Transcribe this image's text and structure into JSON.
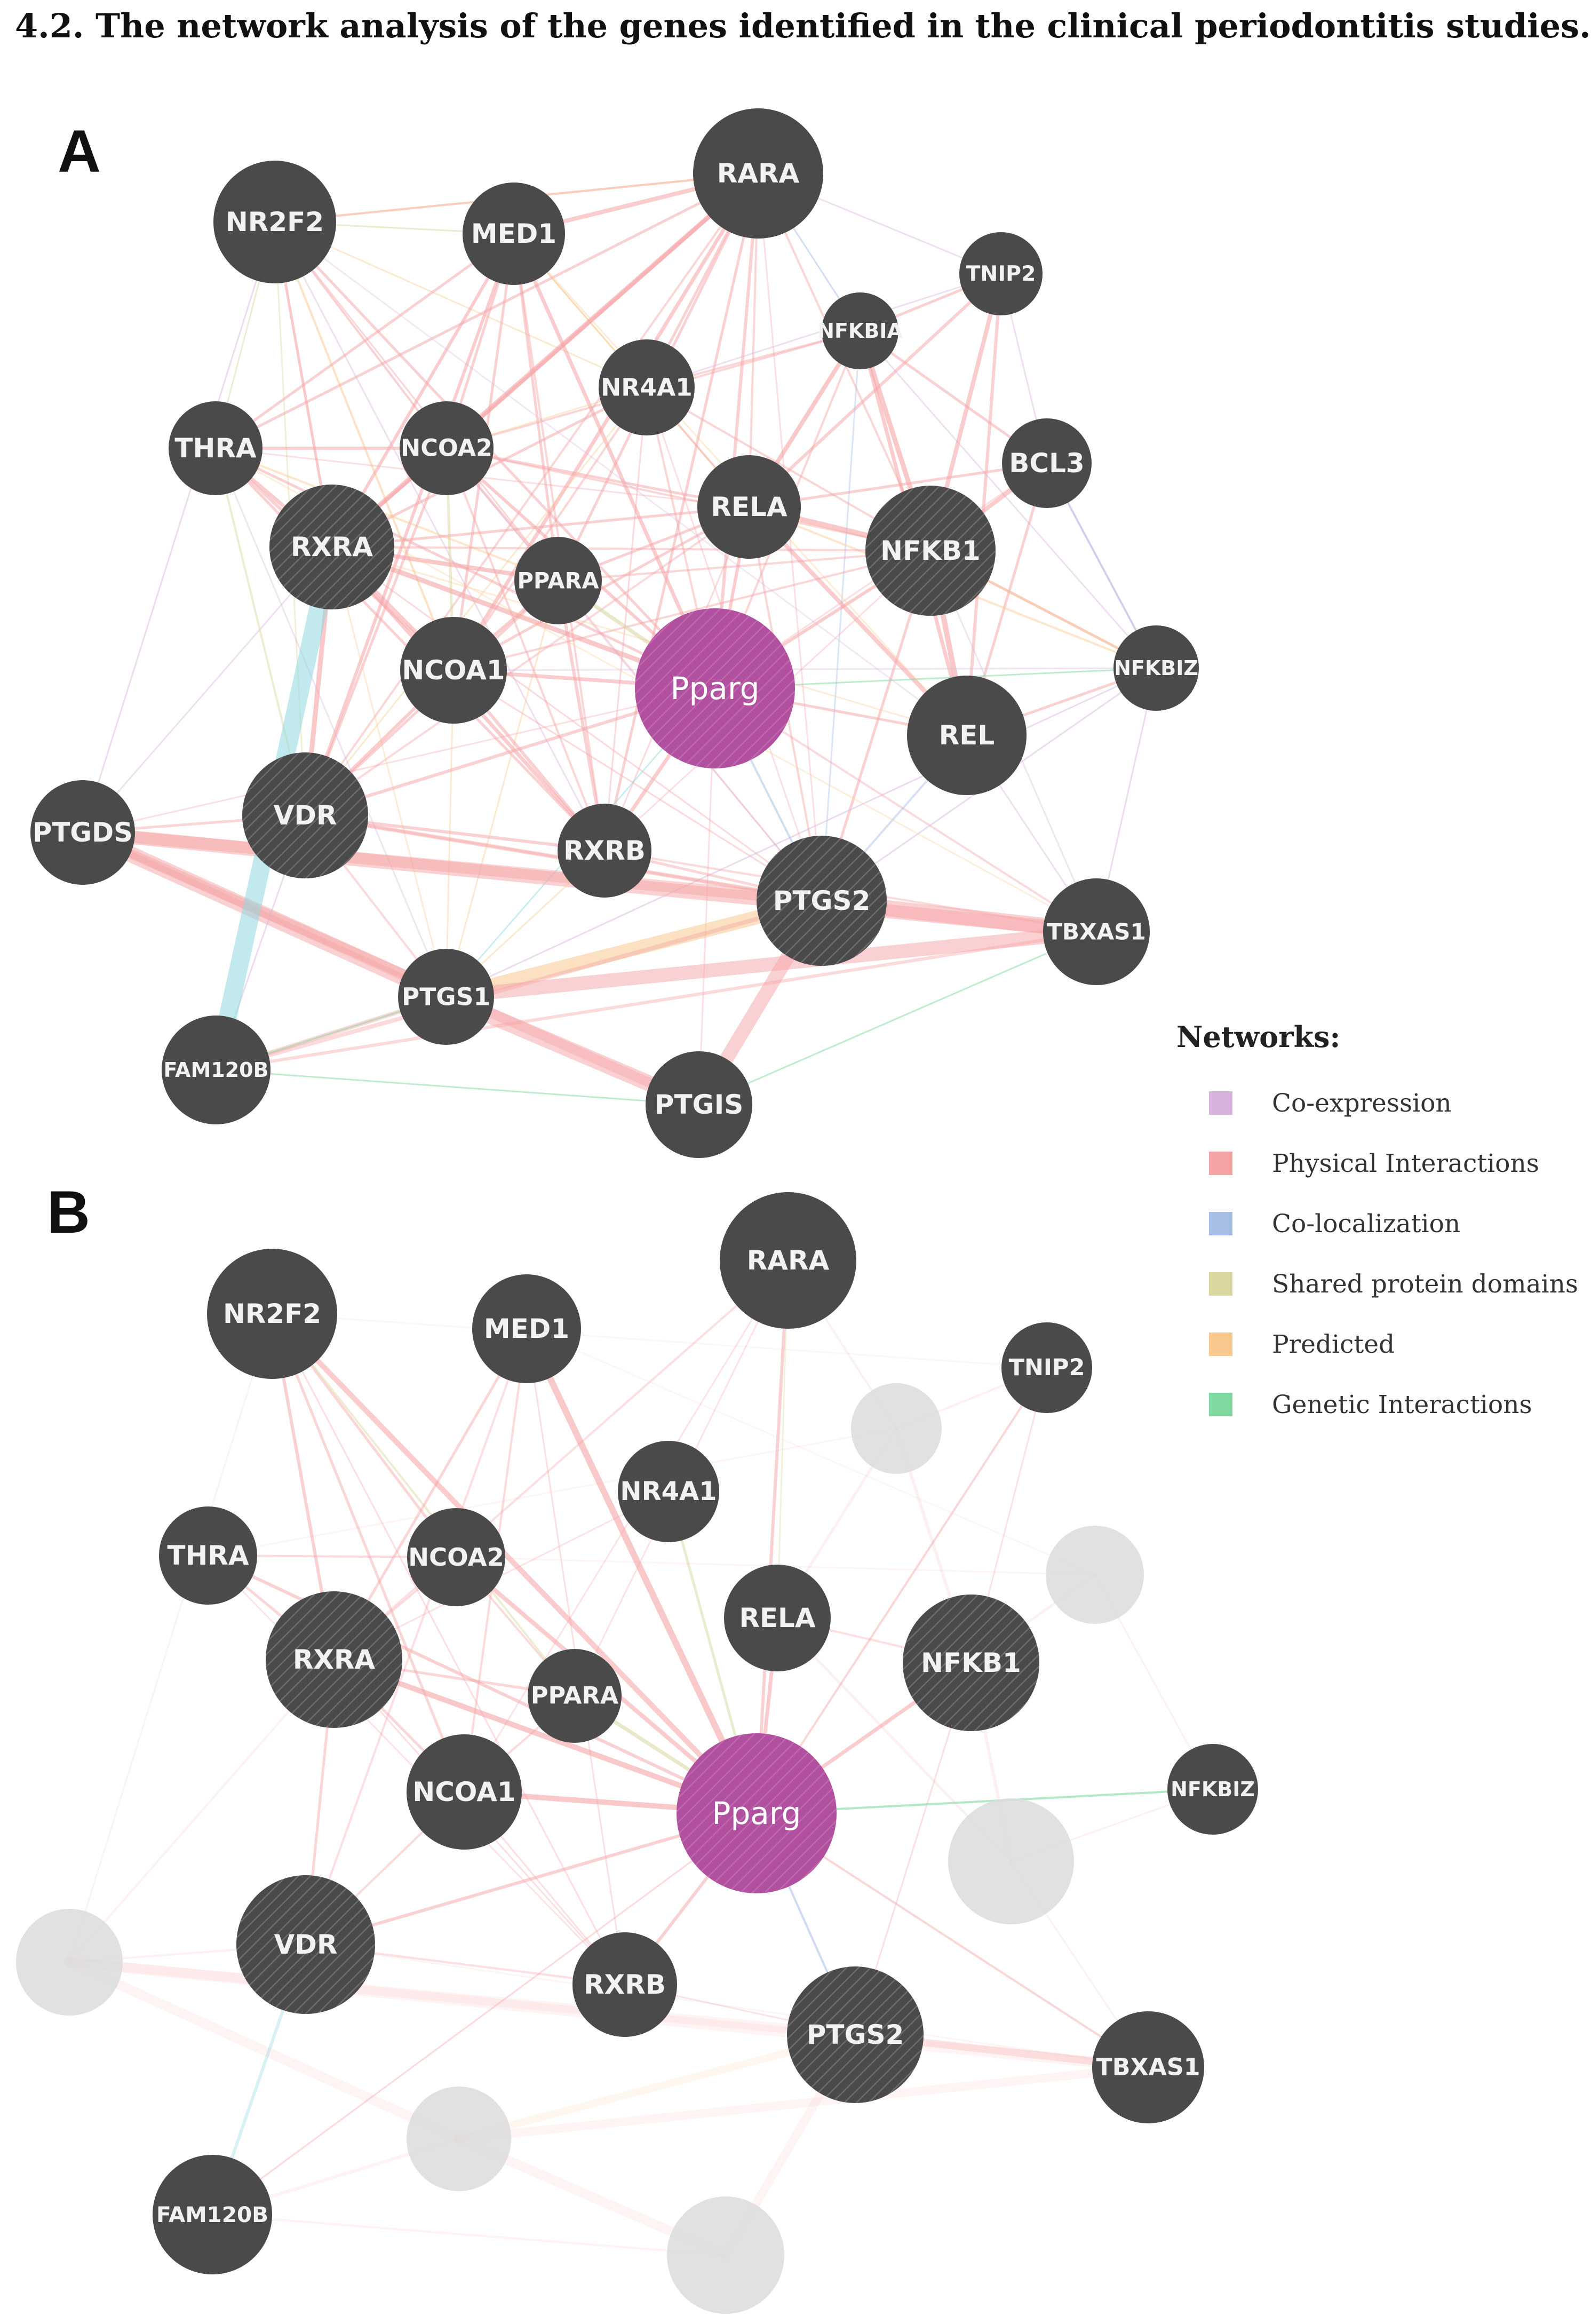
{
  "heading": "4.2. The network analysis of the genes identified in the clinical periodontitis studies.",
  "colors": {
    "node": "#4a4a4a",
    "focus_node": "#b0509f",
    "faded_node": "#dcdcdc",
    "coexpression": "#d7b2dc",
    "physical": "#f5a3a5",
    "colocalization": "#a6bde6",
    "shared_domains": "#d9d6a0",
    "predicted": "#f8c98e",
    "genetic": "#7fd9a0",
    "pathway": "#8fd8e0"
  },
  "legend": {
    "title": "Networks:",
    "items": [
      {
        "label": "Co-expression",
        "color": "#d7b2dc"
      },
      {
        "label": "Physical Interactions",
        "color": "#f5a3a5"
      },
      {
        "label": "Co-localization",
        "color": "#a6bde6"
      },
      {
        "label": "Shared protein domains",
        "color": "#d9d6a0"
      },
      {
        "label": "Predicted",
        "color": "#f8c98e"
      },
      {
        "label": "Genetic Interactions",
        "color": "#7fd9a0"
      }
    ]
  },
  "panels": [
    {
      "label": "A",
      "nodes": [
        {
          "id": "NR2F2",
          "label": "NR2F2",
          "type": "gene"
        },
        {
          "id": "MED1",
          "label": "MED1",
          "type": "gene"
        },
        {
          "id": "RARA",
          "label": "RARA",
          "type": "gene"
        },
        {
          "id": "TNIP2",
          "label": "TNIP2",
          "type": "gene"
        },
        {
          "id": "NFKBIA",
          "label": "NFKBIA",
          "type": "gene"
        },
        {
          "id": "NR4A1",
          "label": "NR4A1",
          "type": "gene"
        },
        {
          "id": "THRA",
          "label": "THRA",
          "type": "gene"
        },
        {
          "id": "NCOA2",
          "label": "NCOA2",
          "type": "gene"
        },
        {
          "id": "BCL3",
          "label": "BCL3",
          "type": "gene"
        },
        {
          "id": "RELA",
          "label": "RELA",
          "type": "gene"
        },
        {
          "id": "RXRA",
          "label": "RXRA",
          "type": "query"
        },
        {
          "id": "NFKB1",
          "label": "NFKB1",
          "type": "query"
        },
        {
          "id": "PPARA",
          "label": "PPARA",
          "type": "gene"
        },
        {
          "id": "NCOA1",
          "label": "NCOA1",
          "type": "gene"
        },
        {
          "id": "Pparg",
          "label": "Pparg",
          "type": "focus"
        },
        {
          "id": "NFKBIZ",
          "label": "NFKBIZ",
          "type": "gene"
        },
        {
          "id": "REL",
          "label": "REL",
          "type": "gene"
        },
        {
          "id": "PTGDS",
          "label": "PTGDS",
          "type": "gene"
        },
        {
          "id": "VDR",
          "label": "VDR",
          "type": "query"
        },
        {
          "id": "RXRB",
          "label": "RXRB",
          "type": "gene"
        },
        {
          "id": "PTGS2",
          "label": "PTGS2",
          "type": "query"
        },
        {
          "id": "TBXAS1",
          "label": "TBXAS1",
          "type": "gene"
        },
        {
          "id": "PTGS1",
          "label": "PTGS1",
          "type": "gene"
        },
        {
          "id": "FAM120B",
          "label": "FAM120B",
          "type": "gene"
        },
        {
          "id": "PTGIS",
          "label": "PTGIS",
          "type": "gene"
        }
      ]
    },
    {
      "label": "B",
      "nodes": [
        {
          "id": "NR2F2",
          "label": "NR2F2",
          "type": "gene"
        },
        {
          "id": "MED1",
          "label": "MED1",
          "type": "gene"
        },
        {
          "id": "RARA",
          "label": "RARA",
          "type": "gene"
        },
        {
          "id": "TNIP2",
          "label": "TNIP2",
          "type": "gene"
        },
        {
          "id": "NR4A1",
          "label": "NR4A1",
          "type": "gene"
        },
        {
          "id": "THRA",
          "label": "THRA",
          "type": "gene"
        },
        {
          "id": "NCOA2",
          "label": "NCOA2",
          "type": "gene"
        },
        {
          "id": "RELA",
          "label": "RELA",
          "type": "gene"
        },
        {
          "id": "RXRA",
          "label": "RXRA",
          "type": "query"
        },
        {
          "id": "NFKB1",
          "label": "NFKB1",
          "type": "query"
        },
        {
          "id": "PPARA",
          "label": "PPARA",
          "type": "gene"
        },
        {
          "id": "NCOA1",
          "label": "NCOA1",
          "type": "gene"
        },
        {
          "id": "Pparg",
          "label": "Pparg",
          "type": "focus"
        },
        {
          "id": "NFKBIZ",
          "label": "NFKBIZ",
          "type": "gene"
        },
        {
          "id": "VDR",
          "label": "VDR",
          "type": "query"
        },
        {
          "id": "RXRB",
          "label": "RXRB",
          "type": "gene"
        },
        {
          "id": "PTGS2",
          "label": "PTGS2",
          "type": "query"
        },
        {
          "id": "TBXAS1",
          "label": "TBXAS1",
          "type": "gene"
        },
        {
          "id": "FAM120B",
          "label": "FAM120B",
          "type": "gene"
        },
        {
          "id": "NFKBIA",
          "label": "",
          "type": "faded"
        },
        {
          "id": "BCL3",
          "label": "",
          "type": "faded"
        },
        {
          "id": "REL",
          "label": "",
          "type": "faded"
        },
        {
          "id": "PTGDS",
          "label": "",
          "type": "faded"
        },
        {
          "id": "PTGS1",
          "label": "",
          "type": "faded"
        },
        {
          "id": "PTGIS",
          "label": "",
          "type": "faded"
        }
      ]
    }
  ]
}
